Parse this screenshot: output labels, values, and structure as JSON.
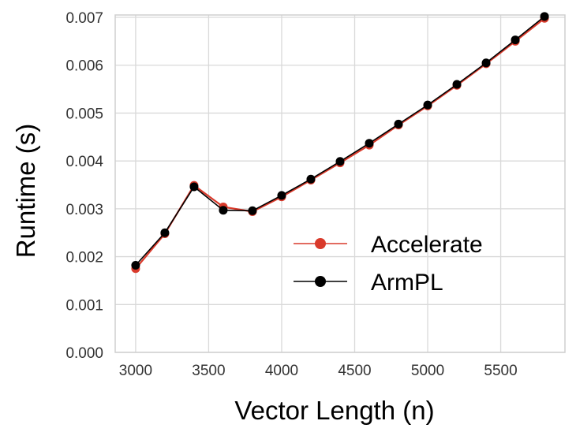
{
  "chart_data": {
    "type": "line",
    "title": "",
    "xlabel": "Vector Length (n)",
    "ylabel": "Runtime (s)",
    "xlim": [
      2860,
      5940
    ],
    "ylim": [
      0,
      0.00705
    ],
    "xticks": [
      3000,
      3500,
      4000,
      4500,
      5000,
      5500
    ],
    "yticks": [
      0.0,
      0.001,
      0.002,
      0.003,
      0.004,
      0.005,
      0.006,
      0.007
    ],
    "xtick_labels": [
      "3000",
      "3500",
      "4000",
      "4500",
      "5000",
      "5500"
    ],
    "ytick_labels": [
      "0.000",
      "0.001",
      "0.002",
      "0.003",
      "0.004",
      "0.005",
      "0.006",
      "0.007"
    ],
    "grid": true,
    "legend_position": "lower-right",
    "x": [
      3000,
      3200,
      3400,
      3600,
      3800,
      4000,
      4200,
      4400,
      4600,
      4800,
      5000,
      5200,
      5400,
      5600,
      5800
    ],
    "series": [
      {
        "name": "Accelerate",
        "color": "#d93a2b",
        "values": [
          0.00175,
          0.00248,
          0.00349,
          0.00304,
          0.00294,
          0.00325,
          0.0036,
          0.00396,
          0.00433,
          0.00475,
          0.00515,
          0.00558,
          0.00603,
          0.0065,
          0.00698
        ]
      },
      {
        "name": "ArmPL",
        "color": "#000000",
        "values": [
          0.00182,
          0.0025,
          0.00346,
          0.00297,
          0.00296,
          0.00328,
          0.00362,
          0.00399,
          0.00437,
          0.00477,
          0.00517,
          0.0056,
          0.00605,
          0.00653,
          0.00702
        ]
      }
    ]
  }
}
